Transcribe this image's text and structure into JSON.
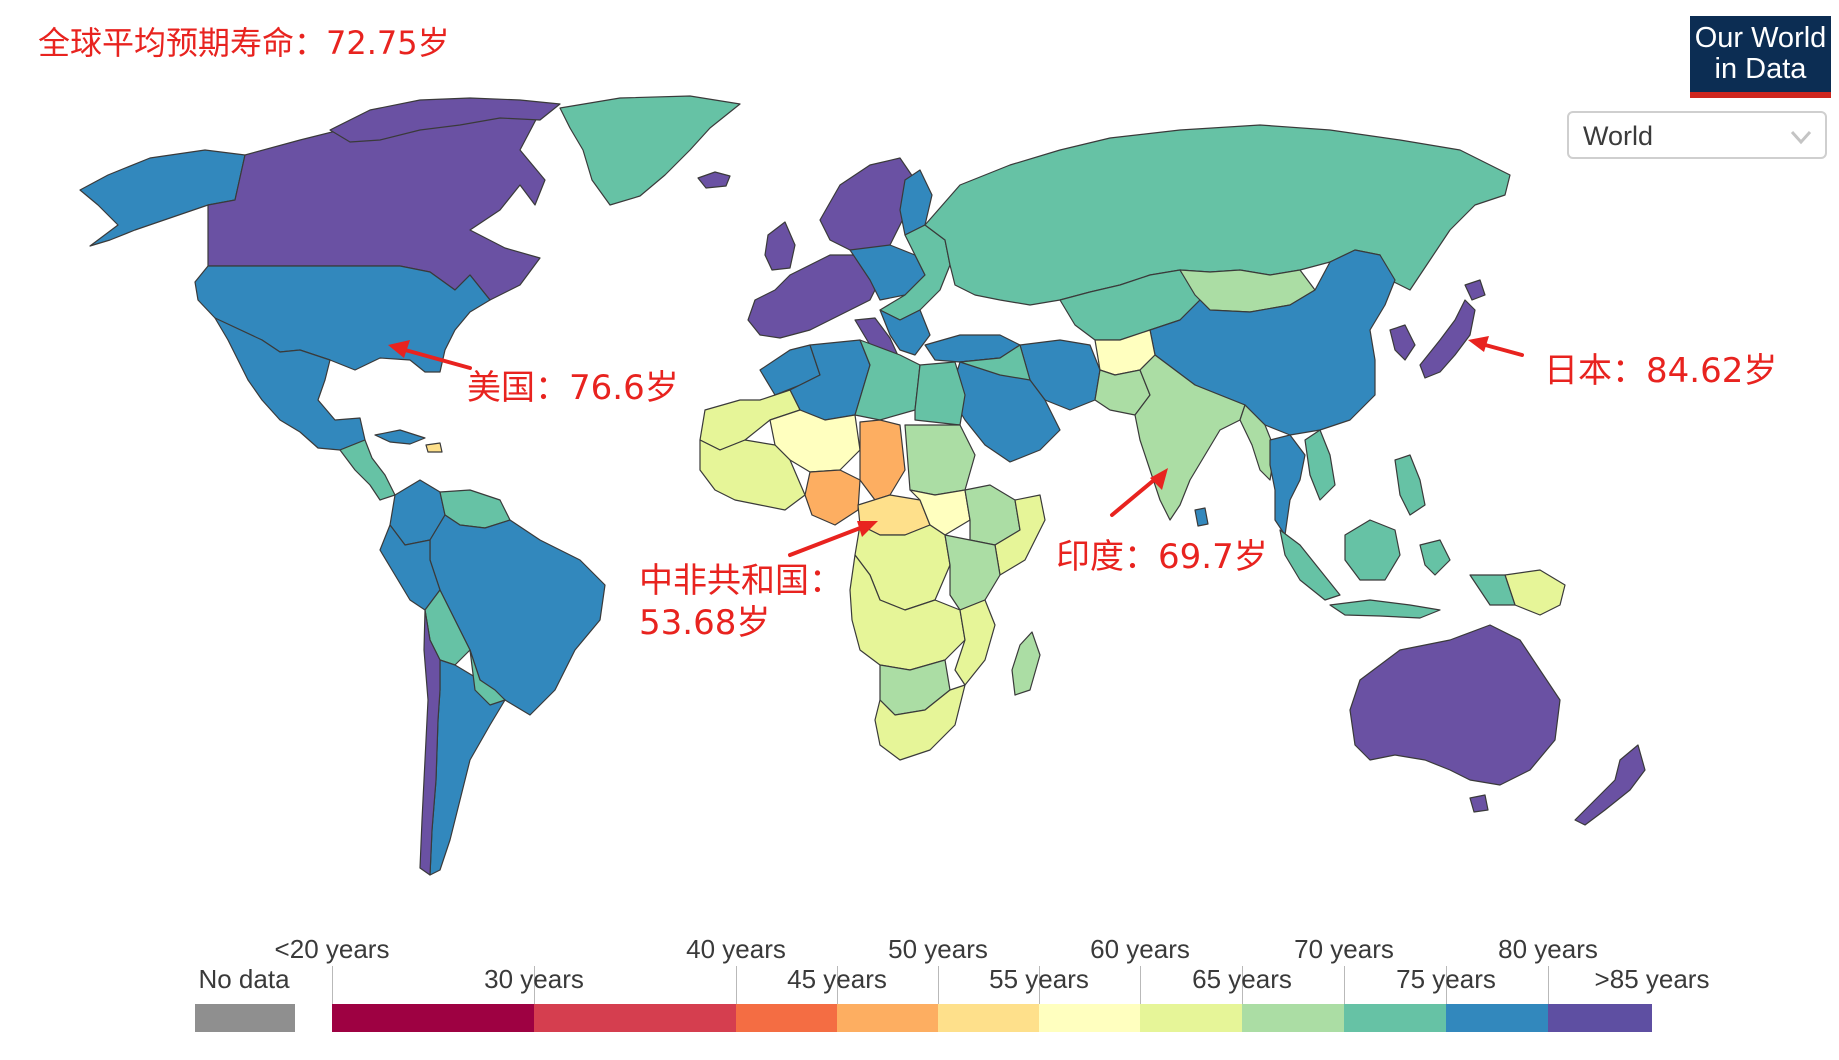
{
  "header": {
    "title": "全球平均预期寿命：72.75岁",
    "logo_line1": "Our World",
    "logo_line2": "in Data"
  },
  "region_selector": {
    "value": "World"
  },
  "annotations": {
    "usa": "美国：76.6岁",
    "japan": "日本：84.62岁",
    "india": "印度：69.7岁",
    "car_line1": "中非共和国：",
    "car_line2": "53.68岁"
  },
  "legend": {
    "no_data": "No data",
    "top_labels": [
      "<20 years",
      "40 years",
      "50 years",
      "60 years",
      "70 years",
      "80 years"
    ],
    "bottom_labels": [
      "30 years",
      "45 years",
      "55 years",
      "65 years",
      "75 years",
      ">85 years"
    ],
    "colors": {
      "no_data": "#8f8f8f",
      "bins": [
        "#9e0142",
        "#d53e4f",
        "#f46d43",
        "#fdae61",
        "#fee08b",
        "#ffffbf",
        "#e6f598",
        "#abdda4",
        "#66c2a5",
        "#3288bd",
        "#5e4fa2"
      ]
    }
  },
  "map_colors": {
    "purple": "#6a51a3",
    "blue": "#3288bd",
    "teal": "#66c2a5",
    "lightgreen": "#abdda4",
    "yellowgreen": "#e6f598",
    "paleyellow": "#ffffbf",
    "yellow": "#fee08b",
    "orange": "#fdae61"
  }
}
